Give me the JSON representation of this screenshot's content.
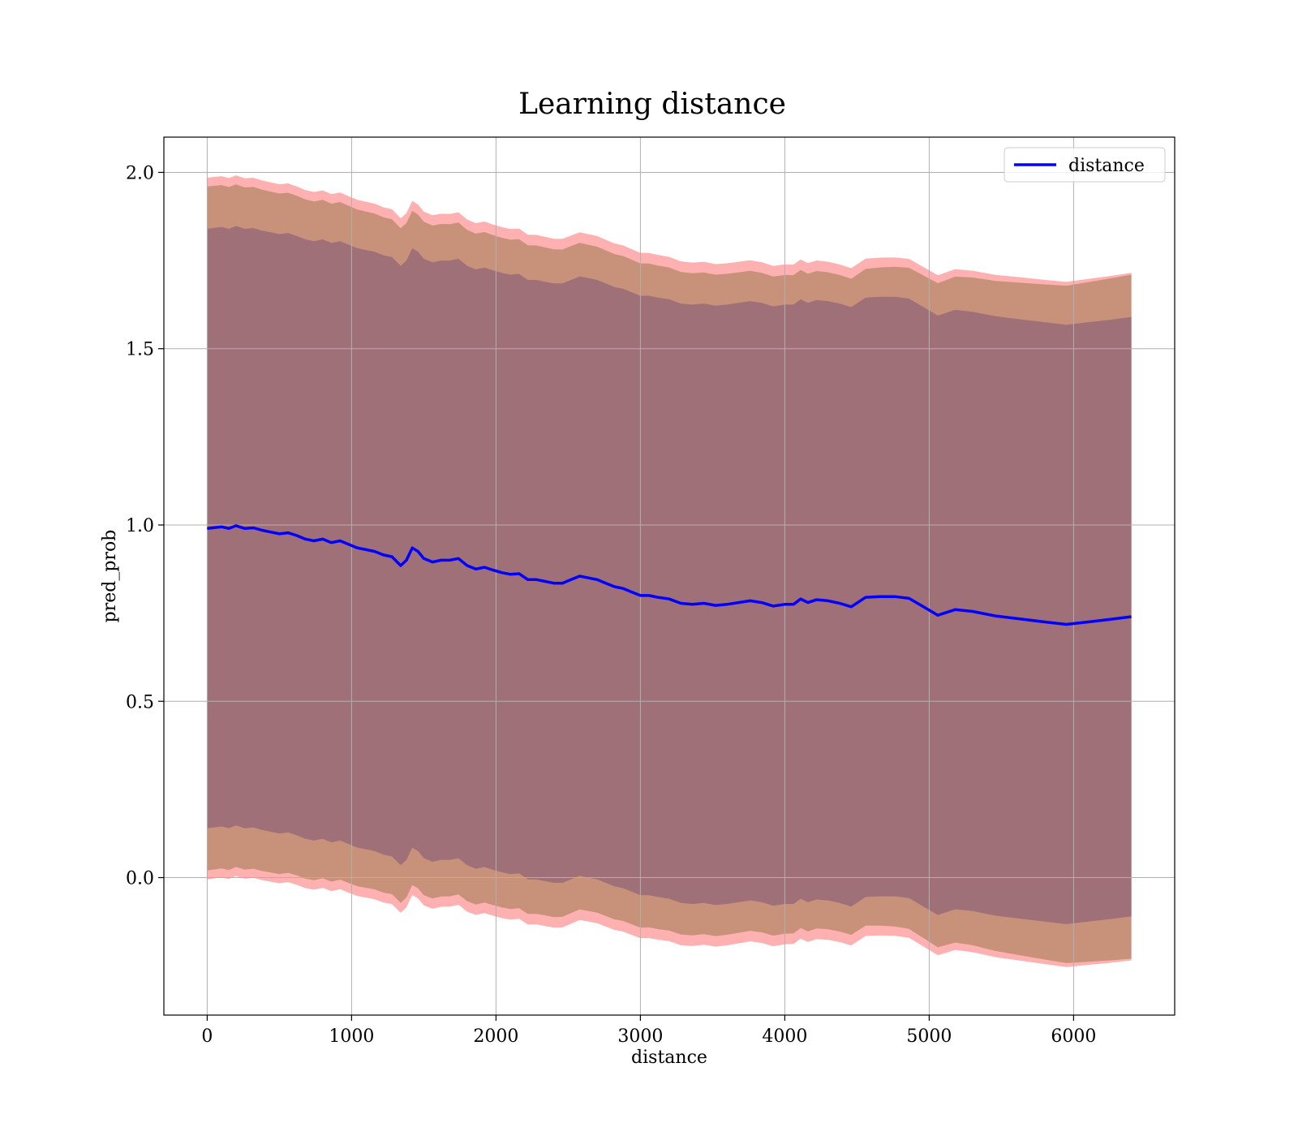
{
  "chart_data": {
    "type": "area",
    "title": "Learning distance",
    "xlabel": "distance",
    "ylabel": "pred_prob",
    "xlim": [
      -300,
      6700
    ],
    "ylim": [
      -0.39,
      2.1
    ],
    "xticks": [
      0,
      1000,
      2000,
      3000,
      4000,
      5000,
      6000
    ],
    "xtick_labels": [
      "0",
      "1000",
      "2000",
      "3000",
      "4000",
      "5000",
      "6000"
    ],
    "yticks": [
      0.0,
      0.5,
      1.0,
      1.5,
      2.0
    ],
    "ytick_labels": [
      "0.0",
      "0.5",
      "1.0",
      "1.5",
      "2.0"
    ],
    "grid": true,
    "legend": {
      "entries": [
        "distance"
      ],
      "placement": "top-right"
    },
    "colors": {
      "line": "#0000ff",
      "outer_band": "#ffb0b0",
      "middle_band": "#c8927a",
      "inner_band": "#a07079",
      "grid": "#b0b0b0"
    },
    "series": [
      {
        "name": "distance",
        "x": [
          0,
          100,
          150,
          200,
          260,
          320,
          380,
          440,
          500,
          560,
          620,
          680,
          740,
          800,
          860,
          920,
          980,
          1040,
          1100,
          1160,
          1220,
          1280,
          1340,
          1380,
          1420,
          1460,
          1500,
          1560,
          1620,
          1680,
          1740,
          1800,
          1860,
          1920,
          1980,
          2040,
          2100,
          2160,
          2220,
          2280,
          2340,
          2400,
          2460,
          2520,
          2580,
          2640,
          2700,
          2760,
          2820,
          2880,
          2940,
          3000,
          3060,
          3120,
          3200,
          3280,
          3360,
          3440,
          3520,
          3600,
          3680,
          3760,
          3840,
          3920,
          4000,
          4060,
          4110,
          4160,
          4220,
          4300,
          4380,
          4460,
          4560,
          4660,
          4760,
          4860,
          4960,
          5060,
          5180,
          5300,
          5460,
          5640,
          5800,
          5950,
          6100,
          6250,
          6400
        ],
        "y": [
          0.99,
          0.995,
          0.99,
          0.998,
          0.99,
          0.992,
          0.985,
          0.98,
          0.975,
          0.978,
          0.97,
          0.96,
          0.955,
          0.96,
          0.95,
          0.955,
          0.945,
          0.935,
          0.93,
          0.925,
          0.915,
          0.91,
          0.885,
          0.9,
          0.935,
          0.925,
          0.905,
          0.895,
          0.9,
          0.9,
          0.905,
          0.885,
          0.875,
          0.88,
          0.872,
          0.865,
          0.86,
          0.862,
          0.845,
          0.845,
          0.84,
          0.835,
          0.835,
          0.845,
          0.855,
          0.85,
          0.845,
          0.835,
          0.825,
          0.82,
          0.81,
          0.8,
          0.8,
          0.795,
          0.79,
          0.778,
          0.775,
          0.778,
          0.772,
          0.775,
          0.78,
          0.785,
          0.78,
          0.77,
          0.775,
          0.775,
          0.79,
          0.78,
          0.788,
          0.785,
          0.778,
          0.768,
          0.795,
          0.797,
          0.797,
          0.792,
          0.768,
          0.744,
          0.76,
          0.755,
          0.742,
          0.733,
          0.725,
          0.718,
          0.725,
          0.732,
          0.74
        ]
      }
    ],
    "bands": [
      {
        "role": "outer",
        "half_width": [
          0.995,
          0.98,
          0.96,
          0.975
        ]
      },
      {
        "role": "middle",
        "half_width": [
          0.97,
          0.95,
          0.93,
          0.97
        ]
      },
      {
        "role": "inner",
        "half_width": [
          0.85,
          0.85,
          0.85,
          0.85
        ]
      }
    ],
    "band_half_width_x": [
      0,
      2000,
      4500,
      6400
    ]
  }
}
